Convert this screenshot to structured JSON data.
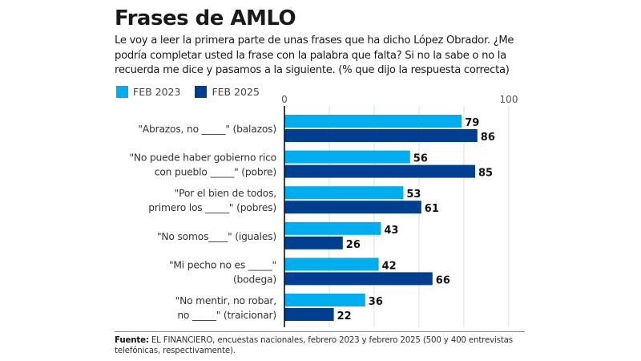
{
  "chart_data": {
    "type": "bar",
    "orientation": "horizontal",
    "title": "Frases de AMLO",
    "subtitle": "Le voy a leer la primera parte de unas frases que ha dicho López Obrador. ¿Me podría completar usted la frase con la palabra que falta? Si no la sabe o no la recuerda me dice y pasamos a la siguiente. (% que dijo la respuesta correcta)",
    "categories": [
      [
        "\"Abrazos, no _____\" (balazos)"
      ],
      [
        "\"No puede haber gobierno rico",
        "con pueblo _____\" (pobre)"
      ],
      [
        "\"Por el bien de todos,",
        "primero los _____\" (pobres)"
      ],
      [
        "\"No somos____\"  (iguales)"
      ],
      [
        "\"Mi pecho no es _____\"",
        "(bodega)"
      ],
      [
        "\"No mentir, no robar,",
        "no  _____\" (traicionar)"
      ]
    ],
    "series": [
      {
        "name": "FEB 2023",
        "color": "#00AEEF",
        "values": [
          79,
          56,
          53,
          43,
          42,
          36
        ]
      },
      {
        "name": "FEB 2025",
        "color": "#003F8F",
        "values": [
          86,
          85,
          61,
          26,
          66,
          22
        ]
      }
    ],
    "xlim": [
      0,
      100
    ],
    "xticks_labeled": [
      "0",
      "100"
    ],
    "grid_step": 20,
    "grid": true,
    "legend_position": "top-left",
    "xlabel": "",
    "ylabel": ""
  },
  "footer": {
    "source_label": "Fuente:",
    "source_text": " EL FINANCIERO, encuestas nacionales, febrero 2023 y febrero 2025 (500 y 400 entrevistas telefónicas, respectivamente)."
  }
}
